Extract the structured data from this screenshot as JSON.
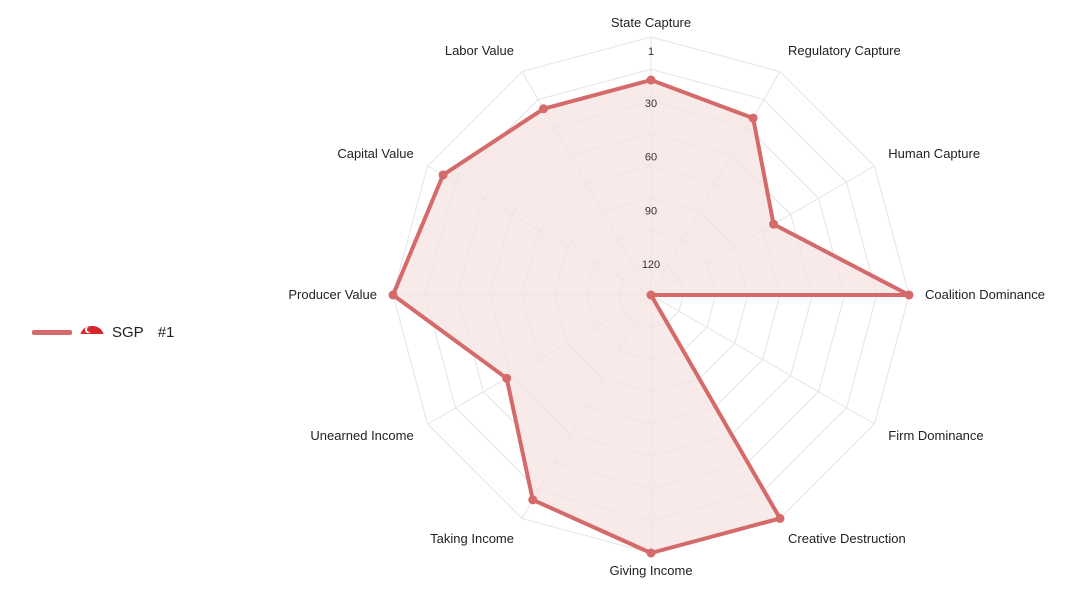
{
  "chart_data": {
    "type": "radar",
    "title": "",
    "axes": [
      "State Capture",
      "Regulatory Capture",
      "Human Capture",
      "Coalition Dominance",
      "Firm Dominance",
      "Creative Destruction",
      "Giving Income",
      "Taking Income",
      "Unearned Income",
      "Producer Value",
      "Capital Value",
      "Labor Value"
    ],
    "radial_scale": {
      "min": 1,
      "max": 145,
      "reversed": true,
      "tick_labels": [
        "1",
        "30",
        "60",
        "90",
        "120"
      ],
      "tick_values": [
        1,
        30,
        60,
        90,
        120
      ],
      "grid_rings": 8,
      "grid_shape": "polygon"
    },
    "series": [
      {
        "name": "SGP",
        "label": "#1",
        "color": "#d46a6a",
        "fill": "#f7e3e3",
        "values": [
          25,
          31,
          66,
          1,
          145,
          1,
          1,
          13,
          52,
          1,
          11,
          25
        ]
      }
    ],
    "legend_position": "left"
  },
  "legend": {
    "country": "SGP",
    "rank": "#1",
    "flag_icon": "singapore-flag-icon"
  }
}
